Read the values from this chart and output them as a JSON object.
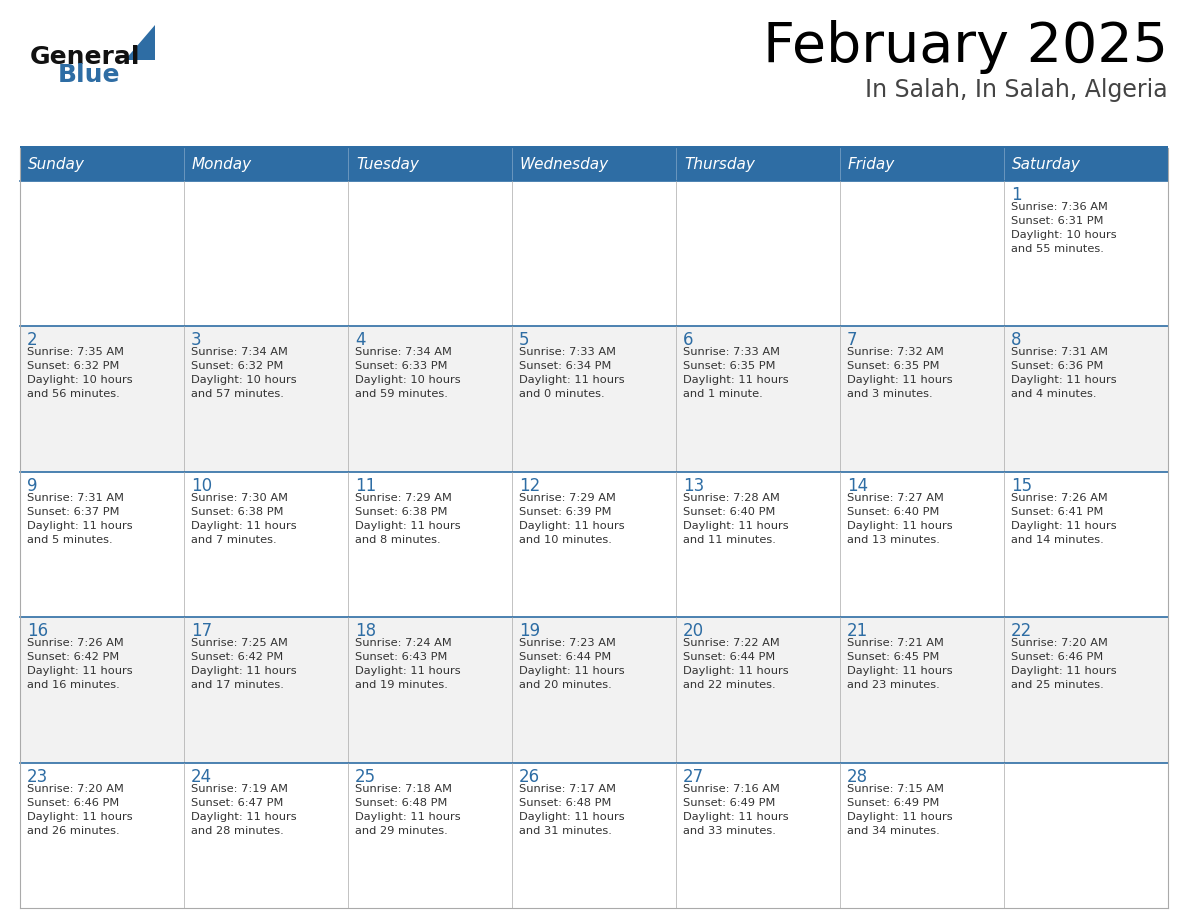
{
  "title": "February 2025",
  "subtitle": "In Salah, In Salah, Algeria",
  "days_of_week": [
    "Sunday",
    "Monday",
    "Tuesday",
    "Wednesday",
    "Thursday",
    "Friday",
    "Saturday"
  ],
  "header_bg": "#2E6DA4",
  "header_text": "#FFFFFF",
  "row_bg_odd": "#FFFFFF",
  "row_bg_even": "#F2F2F2",
  "cell_border_color": "#AAAAAA",
  "row_border_color": "#2E6DA4",
  "day_number_color": "#2E6DA4",
  "cell_text_color": "#333333",
  "title_color": "#000000",
  "subtitle_color": "#444444",
  "logo_general_color": "#111111",
  "logo_blue_color": "#2E6DA4",
  "calendar_data": [
    {
      "day": 1,
      "row": 0,
      "col": 6,
      "sunrise": "7:36 AM",
      "sunset": "6:31 PM",
      "daylight_line1": "Daylight: 10 hours",
      "daylight_line2": "and 55 minutes."
    },
    {
      "day": 2,
      "row": 1,
      "col": 0,
      "sunrise": "7:35 AM",
      "sunset": "6:32 PM",
      "daylight_line1": "Daylight: 10 hours",
      "daylight_line2": "and 56 minutes."
    },
    {
      "day": 3,
      "row": 1,
      "col": 1,
      "sunrise": "7:34 AM",
      "sunset": "6:32 PM",
      "daylight_line1": "Daylight: 10 hours",
      "daylight_line2": "and 57 minutes."
    },
    {
      "day": 4,
      "row": 1,
      "col": 2,
      "sunrise": "7:34 AM",
      "sunset": "6:33 PM",
      "daylight_line1": "Daylight: 10 hours",
      "daylight_line2": "and 59 minutes."
    },
    {
      "day": 5,
      "row": 1,
      "col": 3,
      "sunrise": "7:33 AM",
      "sunset": "6:34 PM",
      "daylight_line1": "Daylight: 11 hours",
      "daylight_line2": "and 0 minutes."
    },
    {
      "day": 6,
      "row": 1,
      "col": 4,
      "sunrise": "7:33 AM",
      "sunset": "6:35 PM",
      "daylight_line1": "Daylight: 11 hours",
      "daylight_line2": "and 1 minute."
    },
    {
      "day": 7,
      "row": 1,
      "col": 5,
      "sunrise": "7:32 AM",
      "sunset": "6:35 PM",
      "daylight_line1": "Daylight: 11 hours",
      "daylight_line2": "and 3 minutes."
    },
    {
      "day": 8,
      "row": 1,
      "col": 6,
      "sunrise": "7:31 AM",
      "sunset": "6:36 PM",
      "daylight_line1": "Daylight: 11 hours",
      "daylight_line2": "and 4 minutes."
    },
    {
      "day": 9,
      "row": 2,
      "col": 0,
      "sunrise": "7:31 AM",
      "sunset": "6:37 PM",
      "daylight_line1": "Daylight: 11 hours",
      "daylight_line2": "and 5 minutes."
    },
    {
      "day": 10,
      "row": 2,
      "col": 1,
      "sunrise": "7:30 AM",
      "sunset": "6:38 PM",
      "daylight_line1": "Daylight: 11 hours",
      "daylight_line2": "and 7 minutes."
    },
    {
      "day": 11,
      "row": 2,
      "col": 2,
      "sunrise": "7:29 AM",
      "sunset": "6:38 PM",
      "daylight_line1": "Daylight: 11 hours",
      "daylight_line2": "and 8 minutes."
    },
    {
      "day": 12,
      "row": 2,
      "col": 3,
      "sunrise": "7:29 AM",
      "sunset": "6:39 PM",
      "daylight_line1": "Daylight: 11 hours",
      "daylight_line2": "and 10 minutes."
    },
    {
      "day": 13,
      "row": 2,
      "col": 4,
      "sunrise": "7:28 AM",
      "sunset": "6:40 PM",
      "daylight_line1": "Daylight: 11 hours",
      "daylight_line2": "and 11 minutes."
    },
    {
      "day": 14,
      "row": 2,
      "col": 5,
      "sunrise": "7:27 AM",
      "sunset": "6:40 PM",
      "daylight_line1": "Daylight: 11 hours",
      "daylight_line2": "and 13 minutes."
    },
    {
      "day": 15,
      "row": 2,
      "col": 6,
      "sunrise": "7:26 AM",
      "sunset": "6:41 PM",
      "daylight_line1": "Daylight: 11 hours",
      "daylight_line2": "and 14 minutes."
    },
    {
      "day": 16,
      "row": 3,
      "col": 0,
      "sunrise": "7:26 AM",
      "sunset": "6:42 PM",
      "daylight_line1": "Daylight: 11 hours",
      "daylight_line2": "and 16 minutes."
    },
    {
      "day": 17,
      "row": 3,
      "col": 1,
      "sunrise": "7:25 AM",
      "sunset": "6:42 PM",
      "daylight_line1": "Daylight: 11 hours",
      "daylight_line2": "and 17 minutes."
    },
    {
      "day": 18,
      "row": 3,
      "col": 2,
      "sunrise": "7:24 AM",
      "sunset": "6:43 PM",
      "daylight_line1": "Daylight: 11 hours",
      "daylight_line2": "and 19 minutes."
    },
    {
      "day": 19,
      "row": 3,
      "col": 3,
      "sunrise": "7:23 AM",
      "sunset": "6:44 PM",
      "daylight_line1": "Daylight: 11 hours",
      "daylight_line2": "and 20 minutes."
    },
    {
      "day": 20,
      "row": 3,
      "col": 4,
      "sunrise": "7:22 AM",
      "sunset": "6:44 PM",
      "daylight_line1": "Daylight: 11 hours",
      "daylight_line2": "and 22 minutes."
    },
    {
      "day": 21,
      "row": 3,
      "col": 5,
      "sunrise": "7:21 AM",
      "sunset": "6:45 PM",
      "daylight_line1": "Daylight: 11 hours",
      "daylight_line2": "and 23 minutes."
    },
    {
      "day": 22,
      "row": 3,
      "col": 6,
      "sunrise": "7:20 AM",
      "sunset": "6:46 PM",
      "daylight_line1": "Daylight: 11 hours",
      "daylight_line2": "and 25 minutes."
    },
    {
      "day": 23,
      "row": 4,
      "col": 0,
      "sunrise": "7:20 AM",
      "sunset": "6:46 PM",
      "daylight_line1": "Daylight: 11 hours",
      "daylight_line2": "and 26 minutes."
    },
    {
      "day": 24,
      "row": 4,
      "col": 1,
      "sunrise": "7:19 AM",
      "sunset": "6:47 PM",
      "daylight_line1": "Daylight: 11 hours",
      "daylight_line2": "and 28 minutes."
    },
    {
      "day": 25,
      "row": 4,
      "col": 2,
      "sunrise": "7:18 AM",
      "sunset": "6:48 PM",
      "daylight_line1": "Daylight: 11 hours",
      "daylight_line2": "and 29 minutes."
    },
    {
      "day": 26,
      "row": 4,
      "col": 3,
      "sunrise": "7:17 AM",
      "sunset": "6:48 PM",
      "daylight_line1": "Daylight: 11 hours",
      "daylight_line2": "and 31 minutes."
    },
    {
      "day": 27,
      "row": 4,
      "col": 4,
      "sunrise": "7:16 AM",
      "sunset": "6:49 PM",
      "daylight_line1": "Daylight: 11 hours",
      "daylight_line2": "and 33 minutes."
    },
    {
      "day": 28,
      "row": 4,
      "col": 5,
      "sunrise": "7:15 AM",
      "sunset": "6:49 PM",
      "daylight_line1": "Daylight: 11 hours",
      "daylight_line2": "and 34 minutes."
    }
  ]
}
